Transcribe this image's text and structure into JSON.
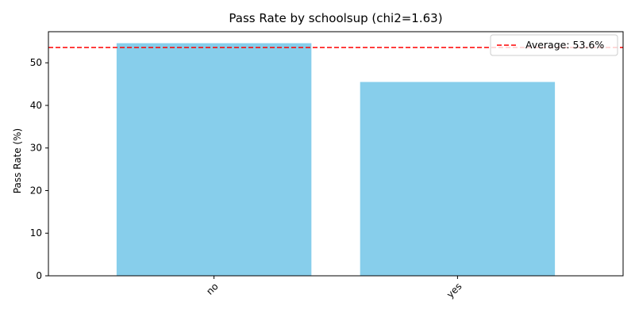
{
  "chart_data": {
    "type": "bar",
    "title": "Pass Rate by schoolsup (chi2=1.63)",
    "xlabel": "",
    "ylabel": "Pass Rate (%)",
    "categories": [
      "no",
      "yes"
    ],
    "values": [
      54.6,
      45.5
    ],
    "ylim": [
      0,
      57.3
    ],
    "yticks": [
      0,
      10,
      20,
      30,
      40,
      50
    ],
    "bar_color": "#87ceeb",
    "reference_line": {
      "value": 53.6,
      "label": "Average: 53.6%",
      "color": "#ff0000",
      "style": "dashed"
    },
    "legend": {
      "position": "top-right",
      "entries": [
        "Average: 53.6%"
      ]
    },
    "grid": false
  }
}
